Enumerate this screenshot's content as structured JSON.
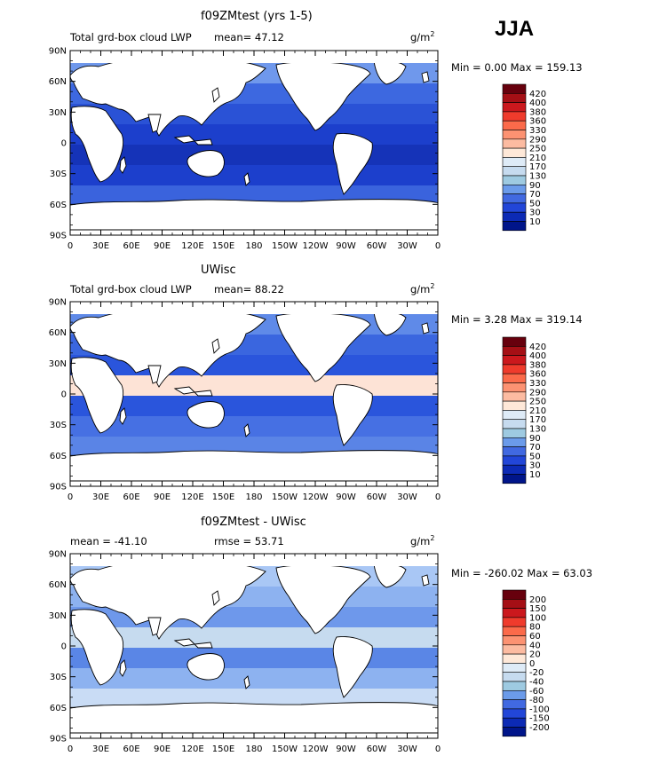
{
  "season": "JJA",
  "axes": {
    "lat_ticks": [
      "90N",
      "60N",
      "30N",
      "0",
      "30S",
      "60S",
      "90S"
    ],
    "lon_ticks": [
      "0",
      "30E",
      "60E",
      "90E",
      "120E",
      "150E",
      "180",
      "150W",
      "120W",
      "90W",
      "60W",
      "30W",
      "0"
    ]
  },
  "colors": {
    "ocean_fill": "#2f5fe0",
    "land": "#ffffff",
    "coast": "#000000"
  },
  "panels": [
    {
      "title": "f09ZMtest (yrs 1-5)",
      "left_label": "Total grd-box cloud LWP",
      "center_label": "mean=  47.12",
      "units_base": "g/m",
      "units_exp": "2",
      "minmax": "Min =    0.00 Max = 159.13",
      "colorbar": {
        "levels": [
          "420",
          "400",
          "380",
          "360",
          "330",
          "290",
          "250",
          "210",
          "170",
          "130",
          "90",
          "70",
          "50",
          "30",
          "10"
        ],
        "colors": [
          "#67000d",
          "#a50f15",
          "#cb181d",
          "#ef3b2c",
          "#fb6a4a",
          "#fc9272",
          "#fcbba1",
          "#fee8d8",
          "#deebf7",
          "#c6dbef",
          "#9ecae1",
          "#6b9bea",
          "#4169e1",
          "#2246d8",
          "#0c2ab5",
          "#00158a"
        ]
      },
      "fill": "#2a55dc"
    },
    {
      "title": "UWisc",
      "left_label": "Total grd-box cloud LWP",
      "center_label": "mean=  88.22",
      "units_base": "g/m",
      "units_exp": "2",
      "minmax": "Min =    3.28 Max = 319.14",
      "colorbar": {
        "levels": [
          "420",
          "400",
          "380",
          "360",
          "330",
          "290",
          "250",
          "210",
          "170",
          "130",
          "90",
          "70",
          "50",
          "30",
          "10"
        ],
        "colors": [
          "#67000d",
          "#a50f15",
          "#cb181d",
          "#ef3b2c",
          "#fb6a4a",
          "#fc9272",
          "#fcbba1",
          "#fee8d8",
          "#deebf7",
          "#c6dbef",
          "#9ecae1",
          "#6b9bea",
          "#4169e1",
          "#2246d8",
          "#0c2ab5",
          "#00158a"
        ]
      },
      "fill": "#3a6be8"
    },
    {
      "title": "f09ZMtest - UWisc",
      "left_label": "mean = -41.10",
      "center_label": "rmse =  53.71",
      "units_base": "g/m",
      "units_exp": "2",
      "minmax": "Min = -260.02 Max =  63.03",
      "colorbar": {
        "levels": [
          "200",
          "150",
          "100",
          "80",
          "60",
          "40",
          "20",
          "0",
          "-20",
          "-40",
          "-60",
          "-80",
          "-100",
          "-150",
          "-200"
        ],
        "colors": [
          "#67000d",
          "#a50f15",
          "#cb181d",
          "#ef3b2c",
          "#fb6a4a",
          "#fc9272",
          "#fcbba1",
          "#fee8d8",
          "#deebf7",
          "#c6dbef",
          "#9ecae1",
          "#6b9bea",
          "#4169e1",
          "#2246d8",
          "#0c2ab5",
          "#00158a"
        ]
      },
      "fill": "#8fb4f2"
    }
  ]
}
